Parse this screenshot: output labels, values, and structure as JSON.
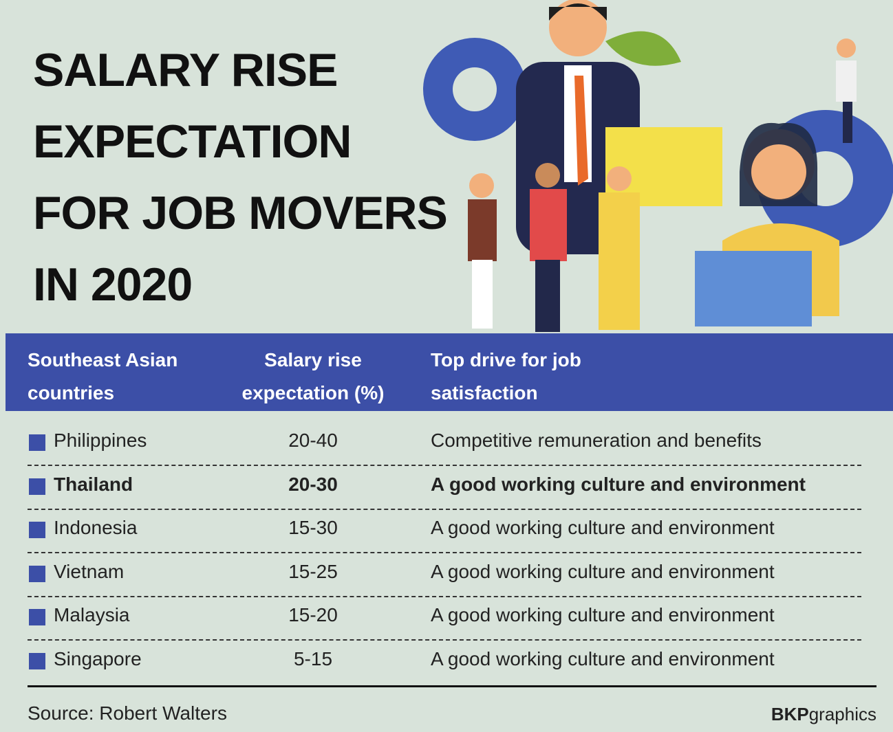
{
  "header": {
    "title_lines": [
      "SALARY RISE",
      "EXPECTATION",
      "FOR JOB MOVERS",
      "IN 2020"
    ]
  },
  "table": {
    "columns": [
      "Southeast Asian countries",
      "Salary rise expectation (%)",
      "Top drive for job satisfaction"
    ],
    "rows": [
      {
        "country": "Philippines",
        "range": "20-40",
        "drive": "Competitive remuneration and benefits",
        "highlight": false
      },
      {
        "country": "Thailand",
        "range": "20-30",
        "drive": "A good working culture and environment",
        "highlight": true
      },
      {
        "country": "Indonesia",
        "range": "15-30",
        "drive": "A good working culture and environment",
        "highlight": false
      },
      {
        "country": "Vietnam",
        "range": "15-25",
        "drive": "A good working culture and environment",
        "highlight": false
      },
      {
        "country": "Malaysia",
        "range": "15-20",
        "drive": "A good working culture and environment",
        "highlight": false
      },
      {
        "country": "Singapore",
        "range": "5-15",
        "drive": "A good working culture and environment",
        "highlight": false
      }
    ]
  },
  "footer": {
    "source": "Source: Robert Walters",
    "credit_bold": "BKP",
    "credit_light": "graphics"
  }
}
